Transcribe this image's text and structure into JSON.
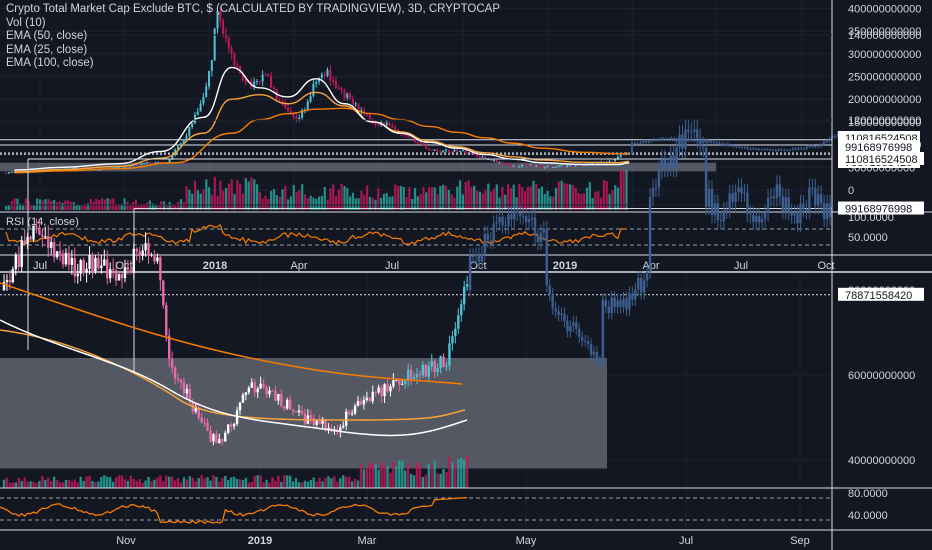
{
  "colors": {
    "background": "#131722",
    "grid": "#1e2230",
    "text": "#d1d4dc",
    "axis_line": "#d9dde6",
    "up_candle": "#4fc3d6",
    "down_candle": "#c2185b",
    "white_candle": "#ffffff",
    "pink_candle": "#e86aa8",
    "ema50": "#ffffff",
    "ema25": "#f7a23b",
    "ema100": "#f57c00",
    "rsi": "#f57c00",
    "volume_up": "#26a69a",
    "volume_down": "#c2185b",
    "zone": "#8a8e99",
    "projection": "#3d5f8f",
    "level_line": "#d9dde6"
  },
  "legend": {
    "title": "Crypto Total Market Cap Exclude BTC, $ (CALCULATED BY TRADINGVIEW), 3D, CRYPTOCAP",
    "lines": [
      "Vol (10)",
      "EMA (50, close)",
      "EMA (25, close)",
      "EMA (100, close)"
    ]
  },
  "chart_data": [
    {
      "type": "candlestick",
      "title": "Crypto Total Market Cap Exclude BTC, $ (CALCULATED BY TRADINGVIEW), 3D, CRYPTOCAP",
      "x_labels": [
        "Jul",
        "Oct",
        "2018",
        "Apr",
        "Jul",
        "Oct",
        "2019",
        "Apr",
        "Jul",
        "Oct"
      ],
      "y_ticks": [
        0,
        50000000000,
        100000000000,
        150000000000,
        200000000000,
        250000000000,
        300000000000,
        350000000000,
        400000000000
      ],
      "y_tick_labels": [
        "0",
        "50000000000",
        "100000000000",
        "150000000000",
        "200000000000",
        "250000000000",
        "300000000000",
        "350000000000",
        "400000000000"
      ],
      "ylim": [
        -20000000000,
        410000000000
      ],
      "price_levels": [
        110816524508,
        99168976998,
        78871558420
      ],
      "price_level_labels": [
        "110816524508",
        "99168976998",
        "78871558420"
      ],
      "zone": {
        "from": 60000000000,
        "to": 42000000000,
        "x_start": "Jun 2017",
        "x_end": "May 2019"
      },
      "series": [
        {
          "name": "EMA (50, close)",
          "x_months": [
            0.3,
            2,
            4,
            5.5,
            7,
            8,
            9,
            10,
            11,
            12,
            13,
            14,
            15,
            16,
            17,
            18,
            19,
            20.5,
            21.7,
            22.1
          ],
          "values": [
            44,
            50,
            58,
            85,
            160,
            270,
            225,
            205,
            245,
            190,
            150,
            125,
            105,
            92,
            78,
            68,
            60,
            56,
            56,
            60
          ]
        },
        {
          "name": "EMA (25, close)",
          "x_months": [
            0.3,
            2,
            4,
            5.5,
            7,
            8,
            9,
            10,
            11,
            12,
            13,
            14,
            15,
            16,
            17,
            18,
            19,
            20.5,
            21.7,
            22.1
          ],
          "values": [
            40,
            45,
            52,
            70,
            125,
            200,
            210,
            190,
            215,
            185,
            150,
            128,
            108,
            95,
            82,
            73,
            66,
            61,
            60,
            63
          ]
        },
        {
          "name": "EMA (100, close)",
          "x_months": [
            0.3,
            2,
            4,
            6,
            8,
            9,
            10,
            11,
            12,
            13,
            14,
            15,
            16,
            17,
            18,
            19,
            20.5,
            21.7,
            22.1
          ],
          "values": [
            38,
            42,
            47,
            60,
            125,
            155,
            168,
            178,
            180,
            168,
            155,
            140,
            127,
            115,
            103,
            92,
            83,
            80,
            80
          ]
        },
        {
          "name": "RSI (14, close)",
          "ref_levels": [
            70,
            30
          ],
          "tick_labels": [
            "100.0000",
            "50.0000"
          ]
        }
      ]
    },
    {
      "type": "candlestick",
      "x_labels": [
        "Nov",
        "2019",
        "Mar",
        "May",
        "Jul",
        "Sep"
      ],
      "y_ticks": [
        40000000000,
        60000000000,
        80000000000,
        100000000000,
        120000000000,
        140000000000
      ],
      "y_tick_labels": [
        "40000000000",
        "60000000000",
        "80000000000",
        "100000000000",
        "120000000000",
        "140000000000"
      ],
      "ylim": [
        34000000000,
        148000000000
      ],
      "price_levels": [
        110816524508,
        99168976998,
        78871558420
      ],
      "price_level_labels": [
        "110816524508",
        "99168976998",
        "78871558420"
      ],
      "zone": {
        "from": 64000000000,
        "to": 38000000000
      },
      "rsi_tick_labels": [
        "80.0000",
        "40.0000"
      ]
    }
  ]
}
